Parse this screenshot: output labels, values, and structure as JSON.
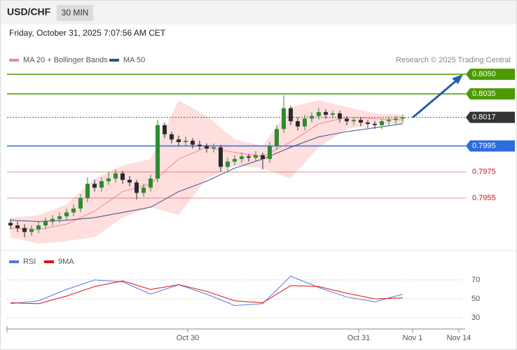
{
  "chart_data": {
    "type": "candlestick",
    "symbol": "USD/CHF",
    "interval": "30 MIN",
    "timestamp": "Friday, October 31, 2025 7:07:56 AM CET",
    "credit": "Research © 2025 Trading Central",
    "ylim": [
      0.7919,
      0.8056
    ],
    "up_color": "#2e8b2e",
    "down_color": "#2a2a2a",
    "candles": {
      "open": [
        0.7936,
        0.7934,
        0.7932,
        0.7929,
        0.7931,
        0.7934,
        0.7937,
        0.7939,
        0.7941,
        0.7944,
        0.7947,
        0.7955,
        0.7966,
        0.7963,
        0.7968,
        0.797,
        0.7974,
        0.7969,
        0.7967,
        0.7959,
        0.7963,
        0.797,
        0.8011,
        0.8004,
        0.8,
        0.7998,
        0.7999,
        0.7996,
        0.7995,
        0.7993,
        0.7994,
        0.7979,
        0.7983,
        0.7985,
        0.7987,
        0.7986,
        0.7988,
        0.7985,
        0.7995,
        0.8008,
        0.8024,
        0.8014,
        0.801,
        0.8016,
        0.8018,
        0.8021,
        0.8019,
        0.802,
        0.8016,
        0.8014,
        0.8015,
        0.8013,
        0.8012,
        0.8011,
        0.8014,
        0.8015,
        0.8016
      ],
      "high": [
        0.7939,
        0.7937,
        0.7935,
        0.7934,
        0.7937,
        0.794,
        0.7942,
        0.7944,
        0.7947,
        0.795,
        0.7958,
        0.7971,
        0.7969,
        0.7971,
        0.7975,
        0.7977,
        0.7976,
        0.7972,
        0.7969,
        0.7966,
        0.7973,
        0.8015,
        0.8013,
        0.8006,
        0.8003,
        0.8002,
        0.8001,
        0.7999,
        0.7997,
        0.7997,
        0.7996,
        0.7986,
        0.7988,
        0.799,
        0.7989,
        0.7991,
        0.799,
        0.7998,
        0.8011,
        0.8034,
        0.8026,
        0.8017,
        0.8019,
        0.8021,
        0.8024,
        0.8023,
        0.8022,
        0.8022,
        0.8018,
        0.8017,
        0.8017,
        0.8015,
        0.8014,
        0.8016,
        0.8017,
        0.8018,
        0.8019
      ],
      "low": [
        0.7931,
        0.7929,
        0.7925,
        0.7926,
        0.7928,
        0.7931,
        0.7934,
        0.7936,
        0.7938,
        0.7941,
        0.7944,
        0.7952,
        0.796,
        0.796,
        0.7965,
        0.7967,
        0.7966,
        0.7964,
        0.7954,
        0.7956,
        0.796,
        0.7967,
        0.8001,
        0.7997,
        0.7995,
        0.7995,
        0.7993,
        0.7992,
        0.799,
        0.799,
        0.7975,
        0.7976,
        0.798,
        0.7982,
        0.7983,
        0.7983,
        0.7977,
        0.7982,
        0.7992,
        0.8005,
        0.8011,
        0.8007,
        0.8007,
        0.8013,
        0.8015,
        0.8016,
        0.8016,
        0.8013,
        0.8011,
        0.8011,
        0.801,
        0.8009,
        0.8008,
        0.8008,
        0.8011,
        0.8012,
        0.8013
      ],
      "close": [
        0.7934,
        0.7932,
        0.7929,
        0.7931,
        0.7934,
        0.7937,
        0.7939,
        0.7941,
        0.7944,
        0.7947,
        0.7955,
        0.7966,
        0.7963,
        0.7968,
        0.797,
        0.7974,
        0.7969,
        0.7967,
        0.7959,
        0.7963,
        0.797,
        0.8011,
        0.8004,
        0.8,
        0.7998,
        0.7999,
        0.7996,
        0.7995,
        0.7993,
        0.7994,
        0.7979,
        0.7983,
        0.7985,
        0.7987,
        0.7986,
        0.7988,
        0.7985,
        0.7995,
        0.8008,
        0.8024,
        0.8014,
        0.801,
        0.8016,
        0.8018,
        0.8021,
        0.8019,
        0.802,
        0.8016,
        0.8014,
        0.8015,
        0.8013,
        0.8012,
        0.8011,
        0.8014,
        0.8015,
        0.8016,
        0.8017
      ]
    },
    "indicators": {
      "x": [
        0,
        4,
        8,
        12,
        16,
        20,
        24,
        28,
        32,
        36,
        40,
        44,
        48,
        52,
        56
      ],
      "ma20": {
        "name": "MA 20 + Bollinger Bands",
        "color": "#f08a8a",
        "band_color": "#ffdede",
        "values": [
          0.7932,
          0.7931,
          0.7935,
          0.7945,
          0.796,
          0.7966,
          0.7985,
          0.7994,
          0.799,
          0.7987,
          0.7998,
          0.8012,
          0.8017,
          0.8016,
          0.8015
        ],
        "upper": [
          0.794,
          0.7942,
          0.795,
          0.797,
          0.798,
          0.7985,
          0.803,
          0.8018,
          0.8,
          0.7995,
          0.8025,
          0.803,
          0.8025,
          0.802,
          0.8019
        ],
        "lower": [
          0.7925,
          0.792,
          0.7922,
          0.7925,
          0.794,
          0.7948,
          0.7942,
          0.797,
          0.798,
          0.7978,
          0.797,
          0.7994,
          0.8008,
          0.8012,
          0.8012
        ]
      },
      "ma50": {
        "name": "MA 50",
        "color": "#34508f",
        "values": [
          0.7938,
          0.7937,
          0.7938,
          0.794,
          0.7944,
          0.7948,
          0.796,
          0.7968,
          0.7978,
          0.7985,
          0.7994,
          0.8002,
          0.8006,
          0.8009,
          0.8012
        ]
      }
    },
    "levels": [
      {
        "value": 0.805,
        "label": "0.8050",
        "color": "#4c9a00",
        "style": "box",
        "line": "solid"
      },
      {
        "value": 0.8035,
        "color": "#4c9a00",
        "style": "box",
        "line": "solid"
      },
      {
        "value": 0.8017,
        "color": "#333333",
        "style": "box",
        "line": "dotted"
      },
      {
        "value": 0.7995,
        "color": "#2d6be0",
        "style": "box",
        "line": "solid"
      },
      {
        "value": 0.7975,
        "color": "#cc1111",
        "style": "text",
        "line": "solid"
      },
      {
        "value": 0.7955,
        "color": "#cc1111",
        "style": "text",
        "line": "solid"
      }
    ],
    "x_labels": [
      "Oct 30",
      "Oct 31",
      "Nov 1",
      "Nov 14"
    ],
    "rsi": {
      "ylim": [
        22,
        81
      ],
      "yticks": [
        30,
        50,
        70
      ],
      "series": [
        {
          "name": "RSI",
          "color": "#5577dd",
          "values": [
            45,
            48,
            60,
            70,
            68,
            55,
            65,
            55,
            43,
            45,
            74,
            62,
            52,
            47,
            55
          ]
        },
        {
          "name": "9MA",
          "color": "#dd1111",
          "values": [
            46,
            45,
            53,
            63,
            69,
            60,
            65,
            58,
            48,
            46,
            64,
            63,
            56,
            50,
            51
          ]
        }
      ]
    }
  }
}
